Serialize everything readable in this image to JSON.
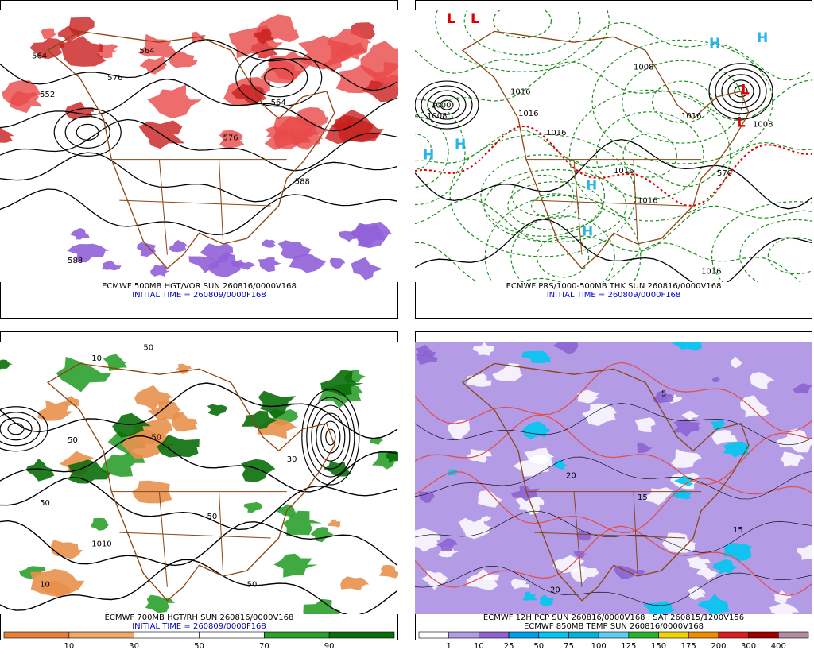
{
  "panels": [
    {
      "caption": "ECMWF 500MB HGT/VOR SUN 260816/0000V168",
      "initial_time": "INITIAL TIME = 260809/0000F168",
      "labels": [
        "564",
        "576",
        "564",
        "576",
        "588",
        "588",
        "564",
        "552"
      ]
    },
    {
      "caption": "ECMWF PRS/1000-500MB THK SUN 260816/0000V168",
      "initial_time": "INITIAL TIME = 260809/0000F168",
      "labels": [
        "1008",
        "1000",
        "1008",
        "1016",
        "1016",
        "1016",
        "1016",
        "1016",
        "570",
        "1008",
        "1016",
        "1016"
      ],
      "symbols": [
        "L",
        "L",
        "H",
        "H",
        "H",
        "L",
        "L",
        "H",
        "H",
        "H"
      ]
    },
    {
      "caption": "ECMWF 700MB HGT/RH SUN 260816/0000V168",
      "initial_time": "INITIAL TIME = 260809/0000F168",
      "labels": [
        "50",
        "50",
        "30",
        "50",
        "1010",
        "10",
        "50",
        "50",
        "10",
        "50"
      ],
      "colorbar": {
        "colors": [
          "#e8803c",
          "#f0a868",
          "#ffffff",
          "#ffffff",
          "#2ca02c",
          "#0a6e0a"
        ],
        "ticks": [
          10,
          30,
          50,
          70,
          90
        ]
      }
    },
    {
      "caption": "ECMWF 12H PCP SUN 260816/0000V168 : SAT 260815/1200V156",
      "initial_time": "ECMWF 850MB TEMP SUN 260816/0000V168",
      "labels": [
        "20",
        "15",
        "20",
        "5",
        "15"
      ],
      "colorbar": {
        "colors": [
          "#ffffff",
          "#b49be6",
          "#8c64d2",
          "#00a0f0",
          "#00c8f0",
          "#00b4dc",
          "#5acdf0",
          "#28b428",
          "#f0d200",
          "#f08c00",
          "#dc1e1e",
          "#a00000",
          "#b48ca0"
        ],
        "ticks": [
          1,
          10,
          25,
          50,
          75,
          100,
          125,
          150,
          175,
          200,
          300,
          400
        ]
      }
    }
  ]
}
